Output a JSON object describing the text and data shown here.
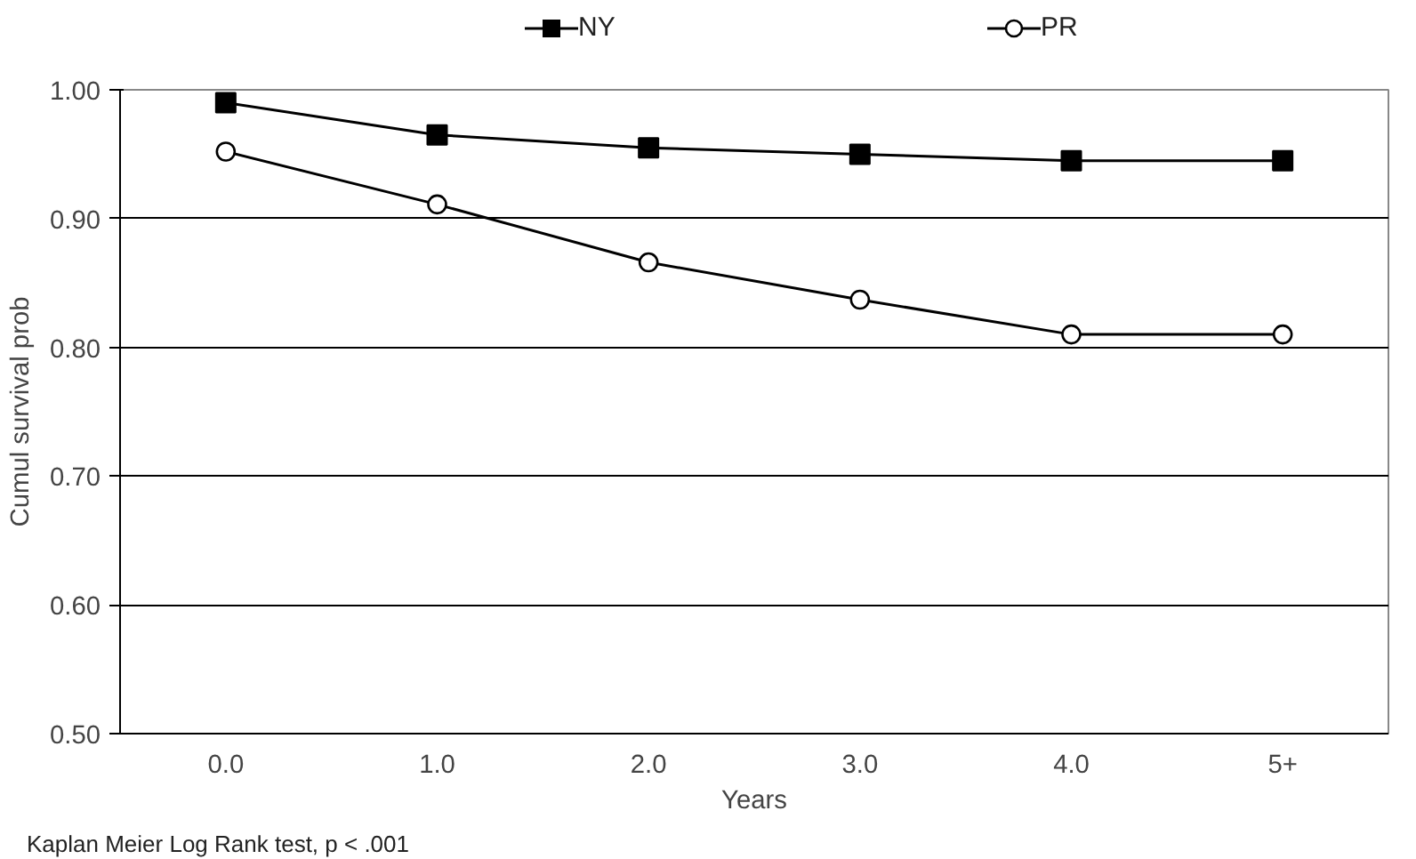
{
  "chart_data": {
    "type": "line",
    "xlabel": "Years",
    "ylabel": "Cumul survival prob",
    "categories": [
      "0.0",
      "1.0",
      "2.0",
      "3.0",
      "4.0",
      "5+"
    ],
    "series": [
      {
        "name": "NY",
        "color": "#000000",
        "marker": "square",
        "values": [
          0.99,
          0.965,
          0.955,
          0.95,
          0.945,
          0.945
        ]
      },
      {
        "name": "PR",
        "color": "#000000",
        "marker": "circle",
        "values": [
          0.952,
          0.911,
          0.866,
          0.837,
          0.81,
          0.81
        ]
      }
    ],
    "ylim": [
      0.5,
      1.0
    ],
    "yticks": [
      {
        "value": 0.5,
        "label": "0.50"
      },
      {
        "value": 0.6,
        "label": "0.60"
      },
      {
        "value": 0.7,
        "label": "0.70"
      },
      {
        "value": 0.8,
        "label": "0.80"
      },
      {
        "value": 0.9,
        "label": "0.90"
      },
      {
        "value": 1.0,
        "label": "1.00"
      }
    ],
    "grid": "y",
    "legend": "top",
    "line_style": "solid",
    "annotations": [
      "Kaplan Meier Log Rank test, p < .001"
    ]
  }
}
